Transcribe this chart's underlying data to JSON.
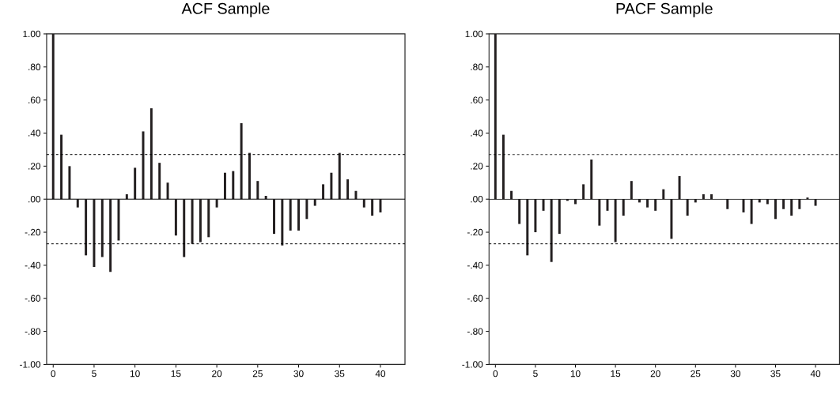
{
  "chart_data": [
    {
      "type": "bar",
      "title": "ACF Sample",
      "color": "#231f20",
      "x": [
        0,
        1,
        2,
        3,
        4,
        5,
        6,
        7,
        8,
        9,
        10,
        11,
        12,
        13,
        14,
        15,
        16,
        17,
        18,
        19,
        20,
        21,
        22,
        23,
        24,
        25,
        26,
        27,
        28,
        29,
        30,
        31,
        32,
        33,
        34,
        35,
        36,
        37,
        38,
        39,
        40
      ],
      "values": [
        1.0,
        0.39,
        0.2,
        -0.05,
        -0.34,
        -0.41,
        -0.35,
        -0.44,
        -0.25,
        0.03,
        0.19,
        0.41,
        0.55,
        0.22,
        0.1,
        -0.22,
        -0.35,
        -0.27,
        -0.26,
        -0.23,
        -0.05,
        0.16,
        0.17,
        0.46,
        0.28,
        0.11,
        0.02,
        -0.21,
        -0.28,
        -0.19,
        -0.19,
        -0.12,
        -0.04,
        0.09,
        0.16,
        0.28,
        0.12,
        0.05,
        -0.05,
        -0.1,
        -0.08
      ],
      "xlim": [
        -0.8,
        43
      ],
      "ylim": [
        -1,
        1
      ],
      "xticks": [
        0,
        5,
        10,
        15,
        20,
        25,
        30,
        35,
        40
      ],
      "yticks": [
        {
          "value": -1,
          "label": "-1.00"
        },
        {
          "value": -0.8,
          "label": "-.80"
        },
        {
          "value": -0.6,
          "label": "-.60"
        },
        {
          "value": -0.4,
          "label": "-.40"
        },
        {
          "value": -0.2,
          "label": "-.20"
        },
        {
          "value": 0,
          "label": ".00"
        },
        {
          "value": 0.2,
          "label": ".20"
        },
        {
          "value": 0.4,
          "label": ".40"
        },
        {
          "value": 0.6,
          "label": ".60"
        },
        {
          "value": 0.8,
          "label": ".80"
        },
        {
          "value": 1,
          "label": "1.00"
        }
      ],
      "ref_lines": [
        {
          "axis": "y",
          "value": 0.27,
          "line_style": "dashed"
        },
        {
          "axis": "y",
          "value": -0.27,
          "line_style": "dashed"
        }
      ]
    },
    {
      "type": "bar",
      "title": "PACF Sample",
      "color": "#231f20",
      "x": [
        0,
        1,
        2,
        3,
        4,
        5,
        6,
        7,
        8,
        9,
        10,
        11,
        12,
        13,
        14,
        15,
        16,
        17,
        18,
        19,
        20,
        21,
        22,
        23,
        24,
        25,
        26,
        27,
        28,
        29,
        30,
        31,
        32,
        33,
        34,
        35,
        36,
        37,
        38,
        39,
        40
      ],
      "values": [
        1.0,
        0.39,
        0.05,
        -0.15,
        -0.34,
        -0.2,
        -0.07,
        -0.38,
        -0.21,
        -0.01,
        -0.03,
        0.09,
        0.24,
        -0.16,
        -0.07,
        -0.26,
        -0.1,
        0.11,
        -0.02,
        -0.05,
        -0.07,
        0.06,
        -0.24,
        0.14,
        -0.1,
        -0.02,
        0.03,
        0.03,
        0,
        -0.06,
        0,
        -0.08,
        -0.15,
        -0.02,
        -0.03,
        -0.12,
        -0.06,
        -0.1,
        -0.06,
        0.01,
        -0.04
      ],
      "xlim": [
        -0.8,
        43
      ],
      "ylim": [
        -1,
        1
      ],
      "xticks": [
        0,
        5,
        10,
        15,
        20,
        25,
        30,
        35,
        40
      ],
      "yticks": [
        {
          "value": -1,
          "label": "-1.00"
        },
        {
          "value": -0.8,
          "label": "-.80"
        },
        {
          "value": -0.6,
          "label": "-.60"
        },
        {
          "value": -0.4,
          "label": "-.40"
        },
        {
          "value": -0.2,
          "label": "-.20"
        },
        {
          "value": 0,
          "label": ".00"
        },
        {
          "value": 0.2,
          "label": ".20"
        },
        {
          "value": 0.4,
          "label": ".40"
        },
        {
          "value": 0.6,
          "label": ".60"
        },
        {
          "value": 0.8,
          "label": ".80"
        },
        {
          "value": 1,
          "label": "1.00"
        }
      ],
      "ref_lines": [
        {
          "axis": "y",
          "value": 0.27,
          "line_style": "dashed"
        },
        {
          "axis": "y",
          "value": -0.27,
          "line_style": "dashed"
        }
      ]
    }
  ]
}
